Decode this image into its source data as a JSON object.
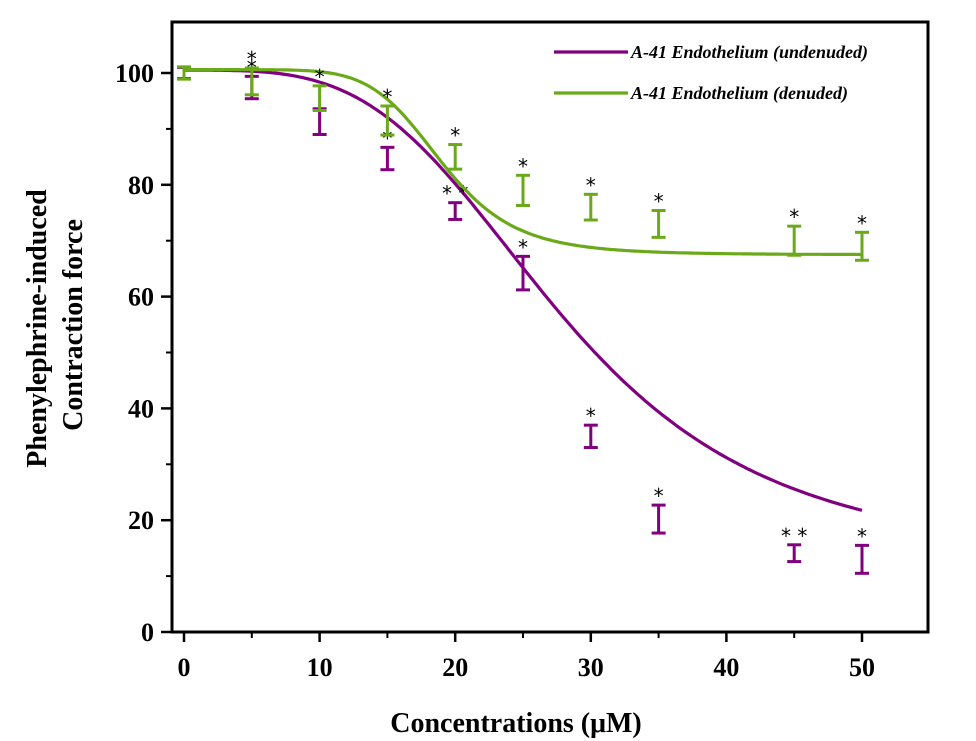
{
  "chart_data": {
    "type": "line",
    "title": "",
    "xlabel": "Concentrations (μM)",
    "ylabel_lines": [
      "Phenylephrine-induced",
      "Contraction force"
    ],
    "xlim": [
      -0.9,
      55
    ],
    "ylim": [
      0,
      109
    ],
    "x_ticks": [
      0,
      10,
      20,
      30,
      40,
      50
    ],
    "x_minor_ticks": [
      5,
      15,
      25,
      35,
      45
    ],
    "y_ticks": [
      0,
      20,
      40,
      60,
      80,
      100
    ],
    "y_minor_ticks": [
      10,
      30,
      50,
      70,
      90
    ],
    "grid": false,
    "legend_position": "top-right",
    "series": [
      {
        "name": "A-41 Endothelium (undenuded)",
        "color": "#800080",
        "x": [
          0,
          5,
          10,
          15,
          20,
          25,
          30,
          35,
          45,
          50
        ],
        "y": [
          100,
          97.4,
          91.3,
          84.7,
          75.3,
          64.2,
          35.0,
          20.2,
          14.1,
          13.0
        ],
        "error": [
          1.0,
          2.0,
          2.3,
          2.0,
          1.5,
          3.0,
          2.0,
          2.5,
          1.5,
          2.5
        ],
        "significance": [
          "",
          "*",
          "",
          "*",
          "**",
          "*",
          "*",
          "*",
          "**",
          "*"
        ],
        "fit": {
          "top": 100.5,
          "bottom": 12.0,
          "x50": 28.0,
          "slope": 3.6
        }
      },
      {
        "name": "A-41 Endothelium (denuded)",
        "color": "#6aaa1a",
        "x": [
          0,
          5,
          10,
          15,
          20,
          25,
          30,
          35,
          45,
          50
        ],
        "y": [
          100,
          98.5,
          95.5,
          91.5,
          85.0,
          79.0,
          76.0,
          73.0,
          70.0,
          69.0
        ],
        "error": [
          1.1,
          2.4,
          2.2,
          2.6,
          2.2,
          2.7,
          2.3,
          2.4,
          2.6,
          2.5
        ],
        "significance": [
          "",
          "*",
          "*",
          "*",
          "*",
          "*",
          "*",
          "*",
          "*",
          "*"
        ],
        "fit": {
          "top": 100.6,
          "bottom": 67.5,
          "x50": 19.0,
          "slope": 7.0
        }
      }
    ]
  }
}
